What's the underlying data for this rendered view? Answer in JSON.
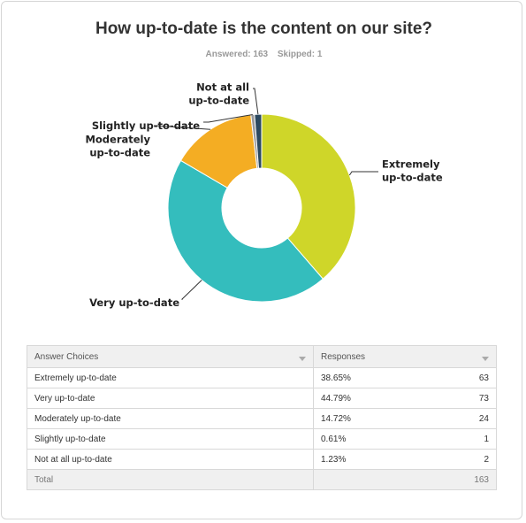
{
  "title": "How up-to-date is the content on our site?",
  "stats": {
    "answered": "Answered: 163",
    "skipped": "Skipped: 1"
  },
  "table": {
    "headers": {
      "choices": "Answer Choices",
      "responses": "Responses"
    },
    "rows": [
      {
        "choice": "Extremely up-to-date",
        "percent": "38.65%",
        "count": "63"
      },
      {
        "choice": "Very up-to-date",
        "percent": "44.79%",
        "count": "73"
      },
      {
        "choice": "Moderately up-to-date",
        "percent": "14.72%",
        "count": "24"
      },
      {
        "choice": "Slightly up-to-date",
        "percent": "0.61%",
        "count": "1"
      },
      {
        "choice": "Not at all up-to-date",
        "percent": "1.23%",
        "count": "2"
      }
    ],
    "total_label": "Total",
    "total_count": "163"
  },
  "chart_data": {
    "type": "pie",
    "donut": true,
    "title": "How up-to-date is the content on our site?",
    "categories": [
      "Extremely up-to-date",
      "Very up-to-date",
      "Moderately up-to-date",
      "Slightly up-to-date",
      "Not at all up-to-date"
    ],
    "values": [
      38.65,
      44.79,
      14.72,
      0.61,
      1.23
    ],
    "counts": [
      63,
      73,
      24,
      1,
      2
    ],
    "colors": [
      "#cfd629",
      "#34bdbd",
      "#f4ad23",
      "#999999",
      "#2b4960"
    ],
    "slice_labels": [
      [
        "Extremely",
        "up-to-date"
      ],
      [
        "Very up-to-date"
      ],
      [
        "Moderately",
        "up-to-date"
      ],
      [
        "Slightly up-to-date"
      ],
      [
        "Not at all",
        "up-to-date"
      ]
    ]
  }
}
